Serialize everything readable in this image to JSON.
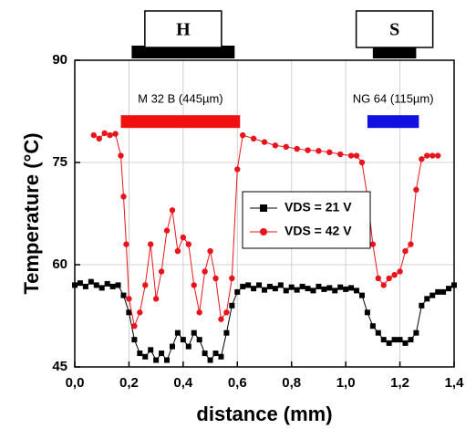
{
  "chart_data": {
    "type": "line",
    "xlabel": "distance (mm)",
    "ylabel": "Temperature (°C)",
    "xlim": [
      0,
      1.4
    ],
    "ylim": [
      45,
      90
    ],
    "xticks": [
      {
        "value": 0,
        "label": "0,0"
      },
      {
        "value": 0.2,
        "label": "0,2"
      },
      {
        "value": 0.4,
        "label": "0,4"
      },
      {
        "value": 0.6,
        "label": "0,6"
      },
      {
        "value": 0.8,
        "label": "0,8"
      },
      {
        "value": 1.0,
        "label": "1,0"
      },
      {
        "value": 1.2,
        "label": "1,2"
      },
      {
        "value": 1.4,
        "label": "1,4"
      }
    ],
    "yticks": [
      45,
      60,
      75,
      90
    ],
    "grid": true,
    "series": [
      {
        "name": "VDS = 21 V",
        "color": "#000000",
        "marker": "square",
        "x": [
          0,
          0.02,
          0.04,
          0.06,
          0.08,
          0.1,
          0.12,
          0.14,
          0.16,
          0.18,
          0.2,
          0.22,
          0.24,
          0.26,
          0.28,
          0.3,
          0.32,
          0.34,
          0.36,
          0.38,
          0.4,
          0.42,
          0.44,
          0.46,
          0.48,
          0.5,
          0.52,
          0.54,
          0.56,
          0.58,
          0.6,
          0.62,
          0.64,
          0.66,
          0.68,
          0.7,
          0.72,
          0.74,
          0.76,
          0.78,
          0.8,
          0.82,
          0.84,
          0.86,
          0.88,
          0.9,
          0.92,
          0.94,
          0.96,
          0.98,
          1.0,
          1.02,
          1.04,
          1.06,
          1.08,
          1.1,
          1.12,
          1.14,
          1.16,
          1.18,
          1.2,
          1.22,
          1.24,
          1.26,
          1.28,
          1.3,
          1.32,
          1.34,
          1.36,
          1.38,
          1.4
        ],
        "values": [
          57,
          57.3,
          56.8,
          57.5,
          57,
          56.6,
          57.2,
          56.8,
          57,
          55.5,
          53,
          49,
          47,
          46.5,
          47.5,
          46,
          47,
          46,
          48,
          50,
          49,
          48,
          50,
          49,
          47,
          46,
          47,
          46.5,
          50,
          54,
          56,
          56.8,
          57,
          56.5,
          57,
          56.3,
          56.8,
          56.5,
          57,
          56.2,
          56.7,
          56.3,
          56.8,
          56.5,
          56.2,
          56.8,
          56.4,
          56.6,
          56.2,
          56.7,
          56.4,
          56.6,
          56.2,
          55.5,
          53,
          51,
          50,
          49,
          48.5,
          49,
          49,
          48.5,
          49,
          50,
          54,
          55,
          55.5,
          56,
          56,
          56.5,
          57
        ]
      },
      {
        "name": "VDS = 42 V",
        "color": "#e8141c",
        "marker": "circle",
        "x": [
          0.07,
          0.09,
          0.11,
          0.13,
          0.15,
          0.17,
          0.18,
          0.19,
          0.2,
          0.22,
          0.24,
          0.26,
          0.28,
          0.3,
          0.32,
          0.34,
          0.36,
          0.38,
          0.4,
          0.42,
          0.44,
          0.46,
          0.48,
          0.5,
          0.52,
          0.54,
          0.56,
          0.58,
          0.6,
          0.62,
          0.66,
          0.7,
          0.74,
          0.78,
          0.82,
          0.86,
          0.9,
          0.94,
          0.98,
          1.02,
          1.04,
          1.06,
          1.08,
          1.1,
          1.12,
          1.14,
          1.16,
          1.18,
          1.2,
          1.22,
          1.24,
          1.26,
          1.28,
          1.3,
          1.32,
          1.34
        ],
        "values": [
          79,
          78.5,
          79.3,
          79,
          79.2,
          76,
          70,
          63,
          55,
          51,
          53,
          57,
          63,
          55,
          59,
          65,
          68,
          62,
          64,
          63,
          57,
          53,
          59,
          62,
          58,
          52,
          53,
          58,
          74,
          79,
          78.5,
          78,
          77.5,
          77.3,
          77,
          76.8,
          76.7,
          76.5,
          76.2,
          76,
          76,
          75,
          70,
          63,
          58,
          57,
          58,
          58.5,
          59,
          62,
          63,
          71,
          75.5,
          76,
          76,
          76
        ]
      }
    ],
    "regions": [
      {
        "label": "M 32 B (445µm)",
        "x": [
          0.17,
          0.61
        ],
        "y": 81,
        "color": "#f01010"
      },
      {
        "label": "NG 64 (115µm)",
        "x": [
          1.08,
          1.27
        ],
        "y": 81,
        "color": "#1010e0"
      }
    ],
    "pads": [
      {
        "label": "H",
        "x": [
          0.21,
          0.59
        ]
      },
      {
        "label": "S",
        "x": [
          1.1,
          1.26
        ]
      }
    ]
  }
}
